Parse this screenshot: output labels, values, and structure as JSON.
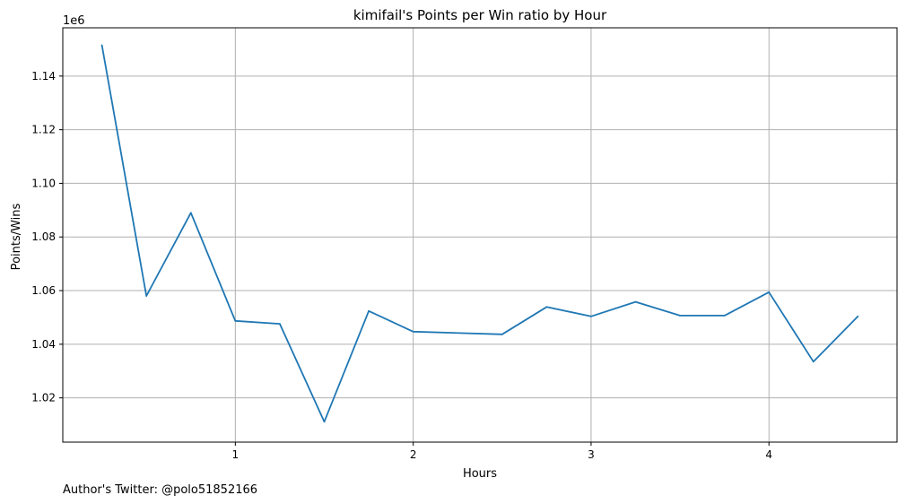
{
  "chart_data": {
    "type": "line",
    "title": "kimifail's Points per Win ratio by Hour",
    "xlabel": "Hours",
    "ylabel": "Points/Wins",
    "y_offset_label": "1e6",
    "x_ticks": [
      "1",
      "2",
      "3",
      "4"
    ],
    "x_tick_values": [
      1,
      2,
      3,
      4
    ],
    "y_ticks": [
      "1.02",
      "1.04",
      "1.06",
      "1.08",
      "1.10",
      "1.12",
      "1.14"
    ],
    "y_tick_values": [
      1.02,
      1.04,
      1.06,
      1.08,
      1.1,
      1.12,
      1.14
    ],
    "xlim": [
      0.03,
      4.72
    ],
    "ylim": [
      1.0035,
      1.158
    ],
    "grid": true,
    "line_color": "#1f77b4",
    "series": [
      {
        "x": [
          0.25,
          0.5,
          0.75,
          1.0,
          1.25,
          1.5,
          1.75,
          2.0,
          2.5,
          2.75,
          3.0,
          3.25,
          3.5,
          3.75,
          4.0,
          4.25,
          4.5
        ],
        "values": [
          1.1515,
          1.058,
          1.089,
          1.0487,
          1.0476,
          1.0111,
          1.0524,
          1.0447,
          1.0437,
          1.0539,
          1.0504,
          1.0558,
          1.0507,
          1.0507,
          1.0594,
          1.0335,
          1.0504
        ]
      }
    ]
  },
  "footer": {
    "credit": "Author's Twitter: @polo51852166"
  }
}
